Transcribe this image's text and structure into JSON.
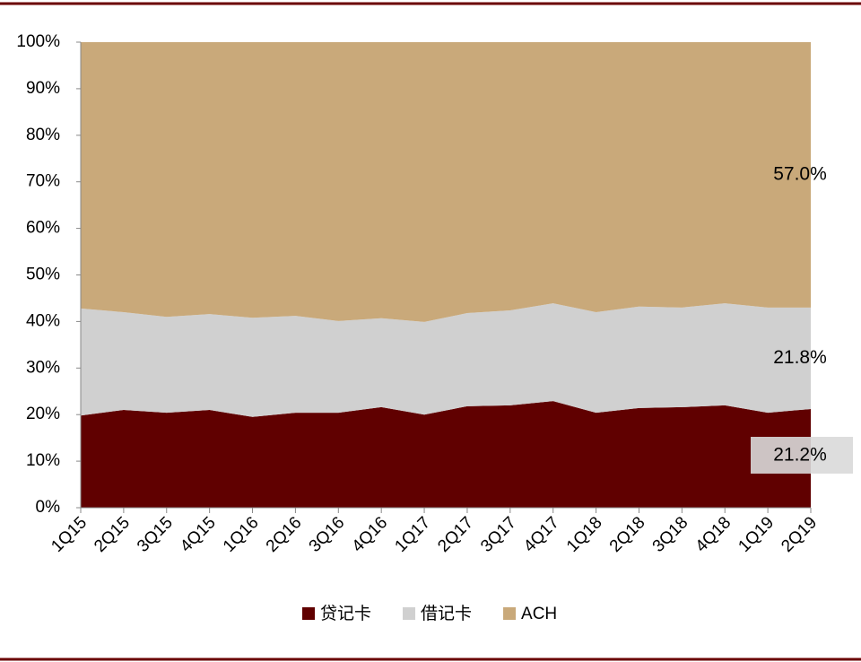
{
  "chart_data": {
    "type": "stacked_area",
    "categories": [
      "1Q15",
      "2Q15",
      "3Q15",
      "4Q15",
      "1Q16",
      "2Q16",
      "3Q16",
      "4Q16",
      "1Q17",
      "2Q17",
      "3Q17",
      "4Q17",
      "1Q18",
      "2Q18",
      "3Q18",
      "4Q18",
      "1Q19",
      "2Q19"
    ],
    "series": [
      {
        "name": "贷记卡",
        "color": "#600000",
        "values": [
          19.8,
          21.0,
          20.4,
          21.0,
          19.5,
          20.4,
          20.4,
          21.6,
          20.0,
          21.8,
          22.0,
          22.9,
          20.4,
          21.4,
          21.6,
          22.0,
          20.4,
          21.2
        ],
        "value_labels": [
          null,
          null,
          null,
          null,
          null,
          null,
          null,
          null,
          null,
          null,
          null,
          null,
          null,
          null,
          null,
          null,
          null,
          "21.2%"
        ]
      },
      {
        "name": "借记卡",
        "color": "#d0d0d0",
        "values": [
          23.0,
          21.0,
          20.6,
          20.6,
          21.3,
          20.8,
          19.7,
          19.1,
          19.9,
          20.0,
          20.4,
          21.0,
          21.6,
          21.8,
          21.4,
          21.9,
          22.6,
          21.8
        ],
        "value_labels": [
          null,
          null,
          null,
          null,
          null,
          null,
          null,
          null,
          null,
          null,
          null,
          null,
          null,
          null,
          null,
          null,
          null,
          "21.8%"
        ]
      },
      {
        "name": "ACH",
        "color": "#c9a97a",
        "values": [
          57.2,
          58.0,
          59.0,
          58.4,
          59.2,
          58.8,
          59.9,
          59.3,
          60.1,
          58.2,
          57.6,
          56.1,
          58.0,
          56.8,
          57.0,
          56.1,
          57.0,
          57.0
        ],
        "value_labels": [
          null,
          null,
          null,
          null,
          null,
          null,
          null,
          null,
          null,
          null,
          null,
          null,
          null,
          null,
          null,
          null,
          null,
          "57.0%"
        ]
      }
    ],
    "ylim": [
      0,
      100
    ],
    "yticks": [
      {
        "value": 0,
        "label": "0%"
      },
      {
        "value": 10,
        "label": "10%"
      },
      {
        "value": 20,
        "label": "20%"
      },
      {
        "value": 30,
        "label": "30%"
      },
      {
        "value": 40,
        "label": "40%"
      },
      {
        "value": 50,
        "label": "50%"
      },
      {
        "value": 60,
        "label": "60%"
      },
      {
        "value": 70,
        "label": "70%"
      },
      {
        "value": 80,
        "label": "80%"
      },
      {
        "value": 90,
        "label": "90%"
      },
      {
        "value": 100,
        "label": "100%"
      }
    ],
    "legend": "bottom"
  }
}
